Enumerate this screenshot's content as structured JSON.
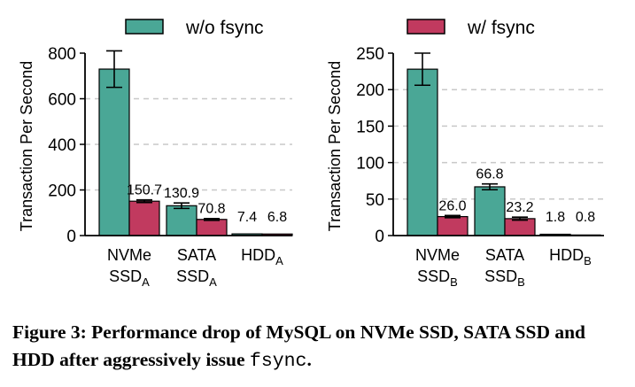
{
  "legend": {
    "series_a_label": "w/o fsync",
    "series_b_label": "w/ fsync"
  },
  "colors": {
    "series_a": "#4aa796",
    "series_b": "#c13a5f",
    "grid": "#c8c8c8"
  },
  "caption": {
    "prefix": "Figure 3: Performance drop of MySQL on NVMe SSD, SATA SSD and HDD after aggressively issue ",
    "code": "fsync",
    "suffix": "."
  },
  "chart_data": [
    {
      "type": "bar",
      "ylabel": "Transaction Per Second",
      "ylim": [
        0,
        800
      ],
      "yticks": [
        "0",
        "200",
        "400",
        "600",
        "800"
      ],
      "grid": "horizontal dashed",
      "categories": [
        {
          "main": "NVMe",
          "sub_base": "SSD",
          "sub": "A"
        },
        {
          "main": "SATA",
          "sub_base": "SSD",
          "sub": "A"
        },
        {
          "main": "",
          "sub_base": "HDD",
          "sub": "A"
        }
      ],
      "series": [
        {
          "name": "w/o fsync",
          "values": [
            730,
            130.9,
            7.4
          ],
          "labels": [
            "",
            "130.9",
            "7.4"
          ],
          "error": [
            80,
            12,
            0
          ]
        },
        {
          "name": "w/ fsync",
          "values": [
            150.7,
            70.8,
            6.8
          ],
          "labels": [
            "150.7",
            "70.8",
            "6.8"
          ],
          "error": [
            6,
            4,
            0
          ]
        }
      ]
    },
    {
      "type": "bar",
      "ylabel": "Transaction Per Second",
      "ylim": [
        0,
        250
      ],
      "yticks": [
        "0",
        "50",
        "100",
        "150",
        "200",
        "250"
      ],
      "grid": "horizontal dashed",
      "categories": [
        {
          "main": "NVMe",
          "sub_base": "SSD",
          "sub": "B"
        },
        {
          "main": "SATA",
          "sub_base": "SSD",
          "sub": "B"
        },
        {
          "main": "",
          "sub_base": "HDD",
          "sub": "B"
        }
      ],
      "series": [
        {
          "name": "w/o fsync",
          "values": [
            228,
            66.8,
            1.8
          ],
          "labels": [
            "",
            "66.8",
            "1.8"
          ],
          "error": [
            22,
            4,
            0
          ]
        },
        {
          "name": "w/ fsync",
          "values": [
            26.0,
            23.2,
            0.8
          ],
          "labels": [
            "26.0",
            "23.2",
            "0.8"
          ],
          "error": [
            1.5,
            2,
            0
          ]
        }
      ]
    }
  ]
}
